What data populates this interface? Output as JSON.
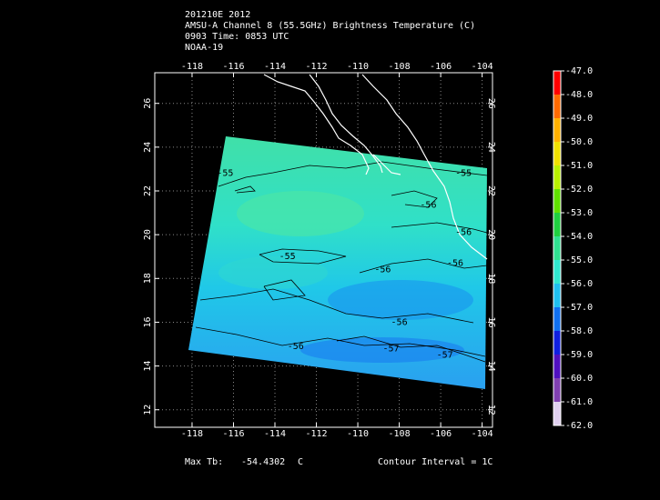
{
  "header": {
    "lines": [
      "201210E 2012",
      "AMSU-A Channel 8 (55.5GHz) Brightness Temperature (C)",
      "0903 Time: 0853 UTC",
      "NOAA-19"
    ]
  },
  "map": {
    "xlim": [
      -119.8,
      -103.5
    ],
    "ylim": [
      11.2,
      27.4
    ],
    "xticks": [
      -118,
      -116,
      -114,
      -112,
      -110,
      -108,
      -106,
      -104
    ],
    "yticks": [
      12,
      14,
      16,
      18,
      20,
      22,
      24,
      26
    ],
    "grid": true,
    "contour_labels": [
      {
        "value": -55,
        "lon": -116.4,
        "lat": 22.8
      },
      {
        "value": -55,
        "lon": -104.9,
        "lat": 22.8
      },
      {
        "value": -56,
        "lon": -106.6,
        "lat": 21.35
      },
      {
        "value": -56,
        "lon": -104.9,
        "lat": 20.1
      },
      {
        "value": -55,
        "lon": -113.4,
        "lat": 19.0
      },
      {
        "value": -56,
        "lon": -108.8,
        "lat": 18.4
      },
      {
        "value": -56,
        "lon": -105.3,
        "lat": 18.7
      },
      {
        "value": -56,
        "lon": -108.0,
        "lat": 16.0
      },
      {
        "value": -56,
        "lon": -113.0,
        "lat": 14.9
      },
      {
        "value": -57,
        "lon": -108.4,
        "lat": 14.8
      },
      {
        "value": -57,
        "lon": -105.8,
        "lat": 14.5
      }
    ]
  },
  "colorbar": {
    "lim": [
      -62,
      -47
    ],
    "ticks": [
      {
        "value": -47,
        "label": "-47.0"
      },
      {
        "value": -48,
        "label": "-48.0"
      },
      {
        "value": -49,
        "label": "-49.0"
      },
      {
        "value": -50,
        "label": "-50.0"
      },
      {
        "value": -51,
        "label": "-51.0"
      },
      {
        "value": -52,
        "label": "-52.0"
      },
      {
        "value": -53,
        "label": "-53.0"
      },
      {
        "value": -54,
        "label": "-54.0"
      },
      {
        "value": -55,
        "label": "-55.0"
      },
      {
        "value": -56,
        "label": "-56.0"
      },
      {
        "value": -57,
        "label": "-57.0"
      },
      {
        "value": -58,
        "label": "-58.0"
      },
      {
        "value": -59,
        "label": "-59.0"
      },
      {
        "value": -60,
        "label": "-60.0"
      },
      {
        "value": -61,
        "label": "-61.0"
      },
      {
        "value": -62,
        "label": "-62.0"
      }
    ],
    "colors": [
      "#ff0000",
      "#ff6a00",
      "#ffb000",
      "#f0e000",
      "#b8f000",
      "#60e000",
      "#20d040",
      "#30e090",
      "#30e8d0",
      "#20c0f0",
      "#1070f0",
      "#1020e0",
      "#5010c0",
      "#8040b0",
      "#e0d0f0"
    ]
  },
  "footer": {
    "max_label": "Max Tb:",
    "max_value": -54.4302,
    "max_unit": "C",
    "contour_interval": "Contour Interval = 1C"
  }
}
